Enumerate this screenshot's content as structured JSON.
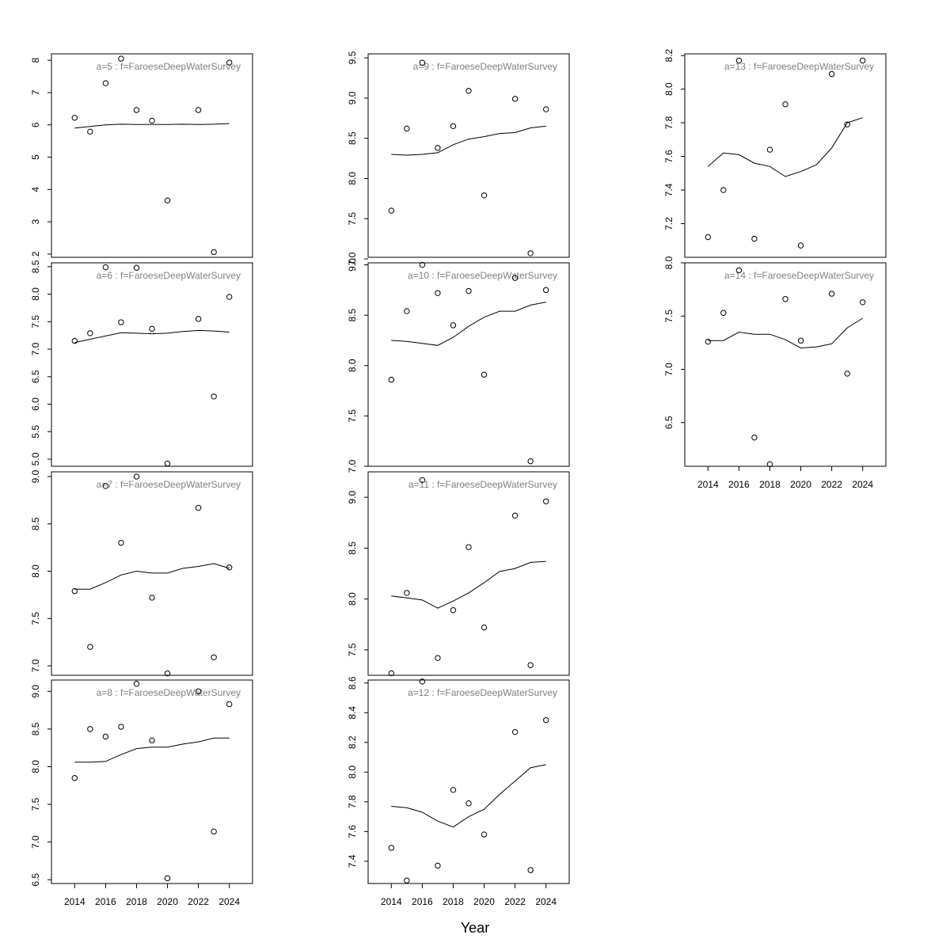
{
  "chart_data": {
    "type": "scatter",
    "xlabel": "Year",
    "ylabel": "",
    "x": [
      2014,
      2015,
      2016,
      2017,
      2018,
      2019,
      2020,
      2022,
      2023,
      2024
    ],
    "fit_x": [
      2014,
      2015,
      2016,
      2017,
      2018,
      2019,
      2020,
      2021,
      2022,
      2023,
      2024
    ],
    "xlim": [
      2012.5,
      2025.5
    ],
    "xticks": [
      2014,
      2016,
      2018,
      2020,
      2022,
      2024
    ],
    "panels": [
      {
        "title": "a=5  :  f=FaroeseDeepWaterSurvey",
        "ylim": [
          1.9,
          8.2
        ],
        "yticks": [
          2,
          3,
          4,
          5,
          6,
          7,
          8
        ],
        "tick_labels": [
          "2",
          "3",
          "4",
          "5",
          "6",
          "7",
          "8"
        ],
        "observed": [
          6.22,
          5.79,
          7.29,
          8.05,
          6.46,
          6.13,
          3.66,
          6.46,
          2.06,
          7.93
        ],
        "fitted": [
          5.9,
          5.95,
          6.0,
          6.02,
          6.01,
          6.01,
          6.01,
          6.02,
          6.01,
          6.02,
          6.04
        ]
      },
      {
        "title": "a=6  :  f=FaroeseDeepWaterSurvey",
        "ylim": [
          4.87,
          8.57
        ],
        "yticks": [
          5.0,
          5.5,
          6.0,
          6.5,
          7.0,
          7.5,
          8.0,
          8.5
        ],
        "tick_labels": [
          "5.0",
          "5.5",
          "6.0",
          "6.5",
          "7.0",
          "7.5",
          "8.0",
          "8.5"
        ],
        "observed": [
          7.15,
          7.29,
          8.49,
          7.49,
          8.48,
          7.37,
          4.92,
          7.55,
          6.14,
          7.95
        ],
        "fitted": [
          7.12,
          7.18,
          7.24,
          7.3,
          7.29,
          7.28,
          7.29,
          7.32,
          7.34,
          7.33,
          7.31
        ]
      },
      {
        "title": "a=7  :  f=FaroeseDeepWaterSurvey",
        "ylim": [
          6.9,
          9.05
        ],
        "yticks": [
          7.0,
          7.5,
          8.0,
          8.5,
          9.0
        ],
        "tick_labels": [
          "7.0",
          "7.5",
          "8.0",
          "8.5",
          "9.0"
        ],
        "observed": [
          7.79,
          7.2,
          8.9,
          8.3,
          9.0,
          7.72,
          6.92,
          8.67,
          7.09,
          8.04
        ],
        "fitted": [
          7.81,
          7.81,
          7.88,
          7.96,
          8.0,
          7.98,
          7.98,
          8.03,
          8.05,
          8.08,
          8.03
        ]
      },
      {
        "title": "a=8  :  f=FaroeseDeepWaterSurvey",
        "ylim": [
          6.45,
          9.15
        ],
        "yticks": [
          6.5,
          7.0,
          7.5,
          8.0,
          8.5,
          9.0
        ],
        "tick_labels": [
          "6.5",
          "7.0",
          "7.5",
          "8.0",
          "8.5",
          "9.0"
        ],
        "observed": [
          7.85,
          8.5,
          8.4,
          8.53,
          9.1,
          8.35,
          6.52,
          9.0,
          7.14,
          8.83
        ],
        "fitted": [
          8.06,
          8.06,
          8.07,
          8.16,
          8.24,
          8.26,
          8.26,
          8.3,
          8.33,
          8.38,
          8.38
        ]
      },
      {
        "title": "a=9  :  f=FaroeseDeepWaterSurvey",
        "ylim": [
          7.02,
          9.55
        ],
        "yticks": [
          7.0,
          7.5,
          8.0,
          8.5,
          9.0,
          9.5
        ],
        "tick_labels": [
          "7.0",
          "7.5",
          "8.0",
          "8.5",
          "9.0",
          "9.5"
        ],
        "observed": [
          7.6,
          8.62,
          9.44,
          8.38,
          8.65,
          9.09,
          7.79,
          8.99,
          7.07,
          8.86
        ],
        "fitted": [
          8.3,
          8.29,
          8.3,
          8.32,
          8.42,
          8.49,
          8.52,
          8.56,
          8.57,
          8.63,
          8.65
        ]
      },
      {
        "title": "a=10  :  f=FaroeseDeepWaterSurvey",
        "ylim": [
          7.0,
          9.02
        ],
        "yticks": [
          7.0,
          7.5,
          8.0,
          8.5,
          9.0
        ],
        "tick_labels": [
          "7.0",
          "7.5",
          "8.0",
          "8.5",
          "9.0"
        ],
        "observed": [
          7.86,
          8.54,
          9.0,
          8.72,
          8.4,
          8.74,
          7.91,
          8.87,
          7.05,
          8.75
        ],
        "fitted": [
          8.25,
          8.24,
          8.22,
          8.2,
          8.28,
          8.39,
          8.48,
          8.54,
          8.54,
          8.6,
          8.63
        ]
      },
      {
        "title": "a=11  :  f=FaroeseDeepWaterSurvey",
        "ylim": [
          7.25,
          9.25
        ],
        "yticks": [
          7.5,
          8.0,
          8.5,
          9.0
        ],
        "tick_labels": [
          "7.5",
          "8.0",
          "8.5",
          "9.0"
        ],
        "observed": [
          7.27,
          8.06,
          9.17,
          7.42,
          7.89,
          8.51,
          7.72,
          8.82,
          7.35,
          8.96
        ],
        "fitted": [
          8.03,
          8.01,
          7.99,
          7.91,
          7.98,
          8.06,
          8.16,
          8.27,
          8.3,
          8.36,
          8.37
        ]
      },
      {
        "title": "a=12  :  f=FaroeseDeepWaterSurvey",
        "ylim": [
          7.25,
          8.62
        ],
        "yticks": [
          7.4,
          7.6,
          7.8,
          8.0,
          8.2,
          8.4,
          8.6
        ],
        "tick_labels": [
          "7.4",
          "7.6",
          "7.8",
          "8.0",
          "8.2",
          "8.4",
          "8.6"
        ],
        "observed": [
          7.49,
          7.27,
          8.61,
          7.37,
          7.88,
          7.79,
          7.58,
          8.27,
          7.34,
          8.35
        ],
        "fitted": [
          7.77,
          7.76,
          7.73,
          7.67,
          7.63,
          7.7,
          7.75,
          7.85,
          7.94,
          8.03,
          8.05
        ]
      },
      {
        "title": "a=13  :  f=FaroeseDeepWaterSurvey",
        "ylim": [
          7.0,
          8.21
        ],
        "yticks": [
          7.2,
          7.4,
          7.6,
          7.8,
          8.0,
          8.2
        ],
        "tick_labels": [
          "7.2",
          "7.4",
          "7.6",
          "7.8",
          "8.0",
          "8.2"
        ],
        "observed": [
          7.12,
          7.4,
          8.17,
          7.11,
          7.64,
          7.91,
          7.07,
          8.09,
          7.79,
          8.17
        ],
        "fitted": [
          7.54,
          7.62,
          7.61,
          7.56,
          7.54,
          7.48,
          7.51,
          7.55,
          7.65,
          7.8,
          7.83
        ]
      },
      {
        "title": "a=14  :  f=FaroeseDeepWaterSurvey",
        "ylim": [
          6.09,
          8.0
        ],
        "yticks": [
          6.5,
          7.0,
          7.5,
          8.0
        ],
        "tick_labels": [
          "6.5",
          "7.0",
          "7.5",
          "8.0"
        ],
        "observed": [
          7.26,
          7.53,
          7.93,
          6.36,
          6.11,
          7.66,
          7.27,
          7.71,
          6.96,
          7.63
        ],
        "fitted": [
          7.27,
          7.27,
          7.35,
          7.33,
          7.33,
          7.28,
          7.2,
          7.21,
          7.24,
          7.39,
          7.48
        ]
      }
    ]
  }
}
